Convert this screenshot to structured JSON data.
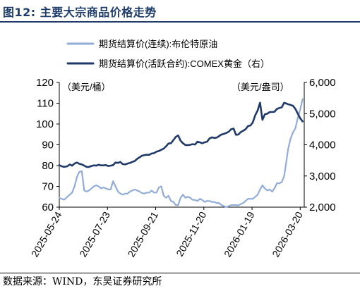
{
  "figure_title": "图12:  主要大宗商品价格走势",
  "source": "数据来源：WIND，东吴证券研究所",
  "chart_data": {
    "type": "line",
    "x_labels": [
      "2025-05-24",
      "2025-07-23",
      "2025-09-21",
      "2025-11-20",
      "2026-01-19",
      "2026-03-20"
    ],
    "x_range": [
      "2025-05-24",
      "2026-03-25"
    ],
    "y_left": {
      "unit_label": "（美元/桶）",
      "range": [
        60,
        120
      ],
      "ticks": [
        "60",
        "70",
        "80",
        "90",
        "100",
        "110",
        "120"
      ]
    },
    "y_right": {
      "unit_label": "（美元/盎司）",
      "range": [
        2000,
        6000
      ],
      "ticks": [
        "2,000",
        "3,000",
        "4,000",
        "5,000",
        "6,000"
      ]
    },
    "grid": false,
    "legend_position": "top",
    "series": [
      {
        "name": "期货结算价(连续):布伦特原油",
        "axis": "left",
        "color": "#92acd8",
        "points": [
          [
            "2025-05-24",
            64.5
          ],
          [
            "2025-05-27",
            64.0
          ],
          [
            "2025-05-30",
            63.6
          ],
          [
            "2025-06-03",
            65.0
          ],
          [
            "2025-06-06",
            66.0
          ],
          [
            "2025-06-09",
            67.0
          ],
          [
            "2025-06-12",
            70.0
          ],
          [
            "2025-06-15",
            74.5
          ],
          [
            "2025-06-18",
            77.0
          ],
          [
            "2025-06-21",
            77.3
          ],
          [
            "2025-06-24",
            68.0
          ],
          [
            "2025-06-27",
            67.5
          ],
          [
            "2025-06-30",
            68.0
          ],
          [
            "2025-07-03",
            69.0
          ],
          [
            "2025-07-06",
            70.0
          ],
          [
            "2025-07-09",
            70.5
          ],
          [
            "2025-07-12",
            70.0
          ],
          [
            "2025-07-15",
            69.0
          ],
          [
            "2025-07-18",
            69.5
          ],
          [
            "2025-07-21",
            69.0
          ],
          [
            "2025-07-24",
            68.5
          ],
          [
            "2025-07-27",
            68.5
          ],
          [
            "2025-07-30",
            72.5
          ],
          [
            "2025-08-02",
            70.0
          ],
          [
            "2025-08-05",
            67.5
          ],
          [
            "2025-08-08",
            66.5
          ],
          [
            "2025-08-11",
            66.0
          ],
          [
            "2025-08-14",
            66.5
          ],
          [
            "2025-08-17",
            66.5
          ],
          [
            "2025-08-20",
            67.5
          ],
          [
            "2025-08-23",
            68.0
          ],
          [
            "2025-08-26",
            68.5
          ],
          [
            "2025-08-29",
            68.0
          ],
          [
            "2025-09-01",
            67.5
          ],
          [
            "2025-09-04",
            66.8
          ],
          [
            "2025-09-07",
            66.5
          ],
          [
            "2025-09-10",
            67.0
          ],
          [
            "2025-09-13",
            67.0
          ],
          [
            "2025-09-16",
            68.0
          ],
          [
            "2025-09-19",
            67.0
          ],
          [
            "2025-09-22",
            67.0
          ],
          [
            "2025-09-25",
            69.5
          ],
          [
            "2025-09-28",
            70.0
          ],
          [
            "2025-10-01",
            65.5
          ],
          [
            "2025-10-04",
            64.5
          ],
          [
            "2025-10-07",
            65.5
          ],
          [
            "2025-10-10",
            63.0
          ],
          [
            "2025-10-13",
            62.5
          ],
          [
            "2025-10-16",
            61.0
          ],
          [
            "2025-10-19",
            61.0
          ],
          [
            "2025-10-22",
            64.5
          ],
          [
            "2025-10-25",
            66.0
          ],
          [
            "2025-10-28",
            64.5
          ],
          [
            "2025-10-31",
            65.0
          ],
          [
            "2025-11-03",
            64.5
          ],
          [
            "2025-11-06",
            63.5
          ],
          [
            "2025-11-09",
            63.5
          ],
          [
            "2025-11-12",
            63.0
          ],
          [
            "2025-11-15",
            64.0
          ],
          [
            "2025-11-18",
            63.5
          ],
          [
            "2025-11-21",
            62.5
          ],
          [
            "2025-11-24",
            63.0
          ],
          [
            "2025-11-27",
            63.0
          ],
          [
            "2025-11-30",
            62.5
          ],
          [
            "2025-12-03",
            62.5
          ],
          [
            "2025-12-06",
            62.0
          ],
          [
            "2025-12-09",
            62.0
          ],
          [
            "2025-12-12",
            61.0
          ],
          [
            "2025-12-15",
            60.5
          ],
          [
            "2025-12-18",
            60.0
          ],
          [
            "2025-12-21",
            60.5
          ],
          [
            "2025-12-24",
            61.0
          ],
          [
            "2025-12-27",
            61.0
          ],
          [
            "2025-12-30",
            61.0
          ],
          [
            "2026-01-02",
            60.8
          ],
          [
            "2026-01-05",
            61.5
          ],
          [
            "2026-01-08",
            62.0
          ],
          [
            "2026-01-11",
            63.0
          ],
          [
            "2026-01-14",
            64.0
          ],
          [
            "2026-01-17",
            64.0
          ],
          [
            "2026-01-20",
            64.0
          ],
          [
            "2026-01-23",
            65.0
          ],
          [
            "2026-01-26",
            66.0
          ],
          [
            "2026-01-29",
            68.5
          ],
          [
            "2026-02-01",
            70.5
          ],
          [
            "2026-02-04",
            69.0
          ],
          [
            "2026-02-07",
            68.0
          ],
          [
            "2026-02-10",
            68.5
          ],
          [
            "2026-02-13",
            67.5
          ],
          [
            "2026-02-16",
            69.0
          ],
          [
            "2026-02-19",
            71.5
          ],
          [
            "2026-02-22",
            71.5
          ],
          [
            "2026-02-25",
            72.0
          ],
          [
            "2026-02-28",
            75.0
          ],
          [
            "2026-03-02",
            80.0
          ],
          [
            "2026-03-05",
            88.0
          ],
          [
            "2026-03-08",
            93.0
          ],
          [
            "2026-03-11",
            96.0
          ],
          [
            "2026-03-14",
            98.0
          ],
          [
            "2026-03-17",
            103.0
          ],
          [
            "2026-03-20",
            107.0
          ],
          [
            "2026-03-23",
            112.0
          ]
        ]
      },
      {
        "name": "期货结算价(活跃合约):COMEX黄金（右）",
        "axis": "right",
        "color": "#1f3a68",
        "points": [
          [
            "2025-05-24",
            3350
          ],
          [
            "2025-05-27",
            3310
          ],
          [
            "2025-05-30",
            3290
          ],
          [
            "2025-06-03",
            3310
          ],
          [
            "2025-06-06",
            3370
          ],
          [
            "2025-06-09",
            3330
          ],
          [
            "2025-06-12",
            3400
          ],
          [
            "2025-06-15",
            3430
          ],
          [
            "2025-06-18",
            3390
          ],
          [
            "2025-06-21",
            3370
          ],
          [
            "2025-06-24",
            3330
          ],
          [
            "2025-06-27",
            3290
          ],
          [
            "2025-06-30",
            3290
          ],
          [
            "2025-07-03",
            3320
          ],
          [
            "2025-07-06",
            3340
          ],
          [
            "2025-07-09",
            3330
          ],
          [
            "2025-07-12",
            3360
          ],
          [
            "2025-07-15",
            3340
          ],
          [
            "2025-07-18",
            3340
          ],
          [
            "2025-07-21",
            3350
          ],
          [
            "2025-07-24",
            3320
          ],
          [
            "2025-07-27",
            3330
          ],
          [
            "2025-07-30",
            3350
          ],
          [
            "2025-08-02",
            3430
          ],
          [
            "2025-08-05",
            3420
          ],
          [
            "2025-08-08",
            3450
          ],
          [
            "2025-08-11",
            3380
          ],
          [
            "2025-08-14",
            3370
          ],
          [
            "2025-08-17",
            3400
          ],
          [
            "2025-08-20",
            3420
          ],
          [
            "2025-08-23",
            3450
          ],
          [
            "2025-08-26",
            3480
          ],
          [
            "2025-08-29",
            3550
          ],
          [
            "2025-09-01",
            3600
          ],
          [
            "2025-09-04",
            3650
          ],
          [
            "2025-09-07",
            3670
          ],
          [
            "2025-09-10",
            3680
          ],
          [
            "2025-09-13",
            3680
          ],
          [
            "2025-09-16",
            3720
          ],
          [
            "2025-09-19",
            3730
          ],
          [
            "2025-09-22",
            3780
          ],
          [
            "2025-09-25",
            3800
          ],
          [
            "2025-09-28",
            3840
          ],
          [
            "2025-10-01",
            3880
          ],
          [
            "2025-10-04",
            3950
          ],
          [
            "2025-10-07",
            4040
          ],
          [
            "2025-10-10",
            4050
          ],
          [
            "2025-10-13",
            4150
          ],
          [
            "2025-10-16",
            4250
          ],
          [
            "2025-10-19",
            4300
          ],
          [
            "2025-10-22",
            4130
          ],
          [
            "2025-10-25",
            4050
          ],
          [
            "2025-10-28",
            3990
          ],
          [
            "2025-10-31",
            3990
          ],
          [
            "2025-11-03",
            4000
          ],
          [
            "2025-11-06",
            4020
          ],
          [
            "2025-11-09",
            4010
          ],
          [
            "2025-11-12",
            4100
          ],
          [
            "2025-11-15",
            4080
          ],
          [
            "2025-11-18",
            4050
          ],
          [
            "2025-11-21",
            4080
          ],
          [
            "2025-11-24",
            4100
          ],
          [
            "2025-11-27",
            4200
          ],
          [
            "2025-11-30",
            4240
          ],
          [
            "2025-12-03",
            4220
          ],
          [
            "2025-12-06",
            4230
          ],
          [
            "2025-12-09",
            4280
          ],
          [
            "2025-12-12",
            4330
          ],
          [
            "2025-12-15",
            4350
          ],
          [
            "2025-12-18",
            4380
          ],
          [
            "2025-12-21",
            4420
          ],
          [
            "2025-12-24",
            4500
          ],
          [
            "2025-12-27",
            4520
          ],
          [
            "2025-12-30",
            4320
          ],
          [
            "2026-01-02",
            4330
          ],
          [
            "2026-01-05",
            4410
          ],
          [
            "2026-01-08",
            4450
          ],
          [
            "2026-01-11",
            4500
          ],
          [
            "2026-01-14",
            4600
          ],
          [
            "2026-01-17",
            4620
          ],
          [
            "2026-01-20",
            4720
          ],
          [
            "2026-01-23",
            4950
          ],
          [
            "2026-01-26",
            5100
          ],
          [
            "2026-01-29",
            5350
          ],
          [
            "2026-02-01",
            4800
          ],
          [
            "2026-02-04",
            4980
          ],
          [
            "2026-02-07",
            5000
          ],
          [
            "2026-02-10",
            5050
          ],
          [
            "2026-02-13",
            5050
          ],
          [
            "2026-02-16",
            5060
          ],
          [
            "2026-02-19",
            5150
          ],
          [
            "2026-02-22",
            5180
          ],
          [
            "2026-02-25",
            5200
          ],
          [
            "2026-02-28",
            5350
          ],
          [
            "2026-03-02",
            5330
          ],
          [
            "2026-03-05",
            5300
          ],
          [
            "2026-03-08",
            5280
          ],
          [
            "2026-03-11",
            5250
          ],
          [
            "2026-03-14",
            5150
          ],
          [
            "2026-03-17",
            5000
          ],
          [
            "2026-03-20",
            4850
          ],
          [
            "2026-03-23",
            4750
          ]
        ]
      }
    ]
  }
}
